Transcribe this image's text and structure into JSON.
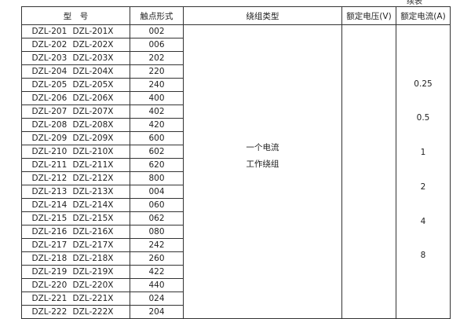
{
  "caption": "续表",
  "headers": [
    "型　号",
    "触点形式",
    "绕组类型",
    "额定电压(V)",
    "额定电流(A)"
  ],
  "rows": [
    [
      "DZL-201",
      "DZL-201X",
      "002"
    ],
    [
      "DZL-202",
      "DZL-202X",
      "006"
    ],
    [
      "DZL-203",
      "DZL-203X",
      "202"
    ],
    [
      "DZL-204",
      "DZL-204X",
      "220"
    ],
    [
      "DZL-205",
      "DZL-205X",
      "240"
    ],
    [
      "DZL-206",
      "DZL-206X",
      "400"
    ],
    [
      "DZL-207",
      "DZL-207X",
      "402"
    ],
    [
      "DZL-208",
      "DZL-208X",
      "420"
    ],
    [
      "DZL-209",
      "DZL-209X",
      "600"
    ],
    [
      "DZL-210",
      "DZL-210X",
      "602"
    ],
    [
      "DZL-211",
      "DZL-211X",
      "620"
    ],
    [
      "DZL-212",
      "DZL-212X",
      "800"
    ],
    [
      "DZL-213",
      "DZL-213X",
      "004"
    ],
    [
      "DZL-214",
      "DZL-214X",
      "060"
    ],
    [
      "DZL-215",
      "DZL-215X",
      "062"
    ],
    [
      "DZL-216",
      "DZL-216X",
      "080"
    ],
    [
      "DZL-217",
      "DZL-217X",
      "242"
    ],
    [
      "DZL-218",
      "DZL-218X",
      "260"
    ],
    [
      "DZL-219",
      "DZL-219X",
      "422"
    ],
    [
      "DZL-220",
      "DZL-220X",
      "440"
    ],
    [
      "DZL-221",
      "DZL-221X",
      "024"
    ],
    [
      "DZL-222",
      "DZL-222X",
      "204"
    ]
  ],
  "winding_type": [
    "一个电流",
    "工作绕组"
  ],
  "rated_voltage": "",
  "rated_current": [
    "0.25",
    "0.5",
    "1",
    "2",
    "4",
    "8"
  ]
}
